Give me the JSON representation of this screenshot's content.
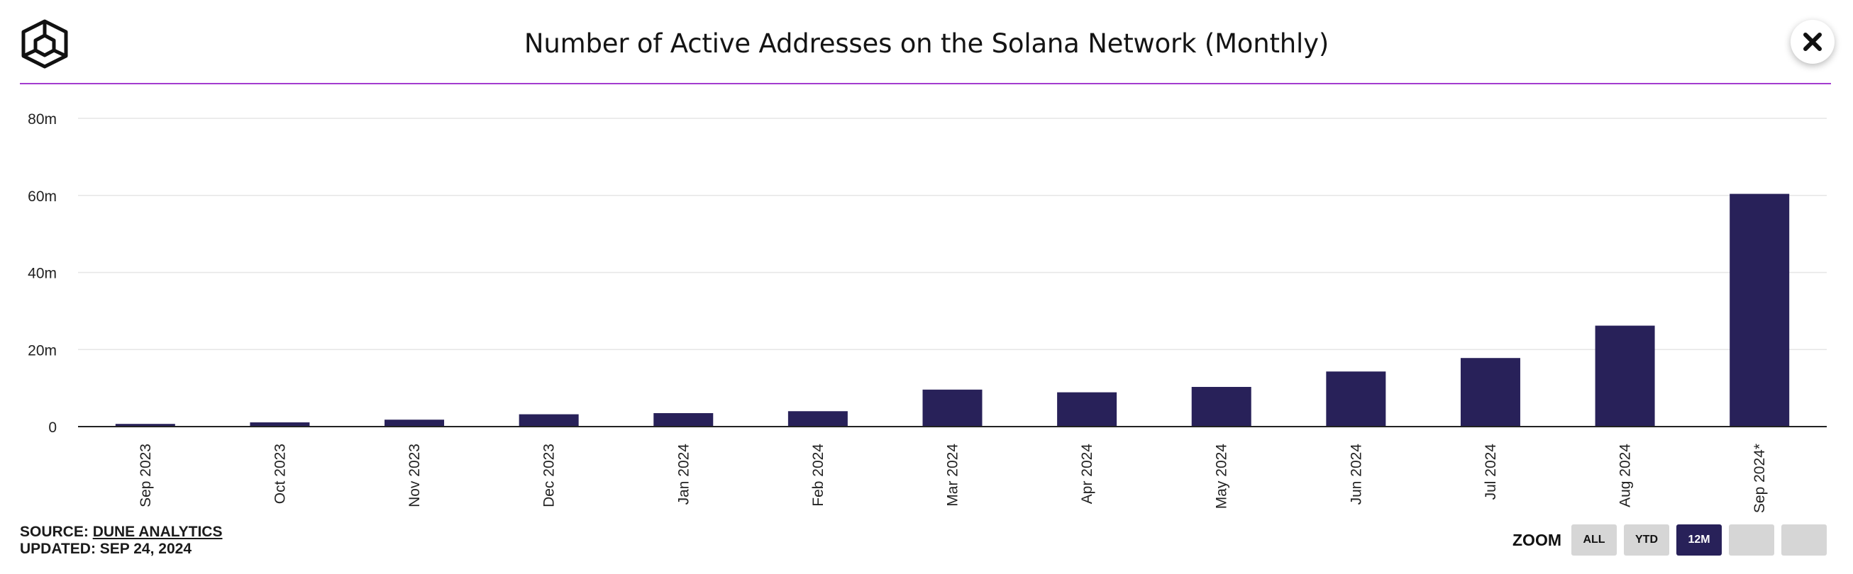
{
  "title": "Number of Active Addresses on the Solana Network (Monthly)",
  "colors": {
    "bar": "#282159",
    "accent_line": "#a33ccf",
    "grid": "#e6e6e6",
    "zoom_active": "#282159",
    "zoom_inactive": "#d6d6d6"
  },
  "icons": {
    "logo": "cube-logo-icon",
    "close": "close-icon"
  },
  "footer": {
    "source_prefix": "SOURCE:",
    "source_link": "DUNE ANALYTICS",
    "updated": "UPDATED: SEP 24, 2024"
  },
  "zoom": {
    "label": "ZOOM",
    "buttons": [
      {
        "label": "ALL",
        "active": false
      },
      {
        "label": "YTD",
        "active": false
      },
      {
        "label": "12M",
        "active": true
      },
      {
        "label": "",
        "active": false
      },
      {
        "label": "",
        "active": false
      }
    ]
  },
  "chart_data": {
    "type": "bar",
    "title": "Number of Active Addresses on the Solana Network (Monthly)",
    "xlabel": "",
    "ylabel": "",
    "categories": [
      "Sep 2023",
      "Oct 2023",
      "Nov 2023",
      "Dec 2023",
      "Jan 2024",
      "Feb 2024",
      "Mar 2024",
      "Apr 2024",
      "May 2024",
      "Jun 2024",
      "Jul 2024",
      "Aug 2024",
      "Sep 2024*"
    ],
    "values": [
      0.7,
      1.1,
      1.8,
      3.2,
      3.5,
      4.0,
      9.6,
      8.9,
      10.3,
      14.3,
      17.8,
      26.2,
      60.4
    ],
    "unit": "m",
    "ylim": [
      0,
      80
    ],
    "yticks": [
      0,
      20,
      40,
      60,
      80
    ],
    "ytick_labels": [
      "0",
      "20m",
      "40m",
      "60m",
      "80m"
    ],
    "grid": true,
    "legend": "none"
  }
}
